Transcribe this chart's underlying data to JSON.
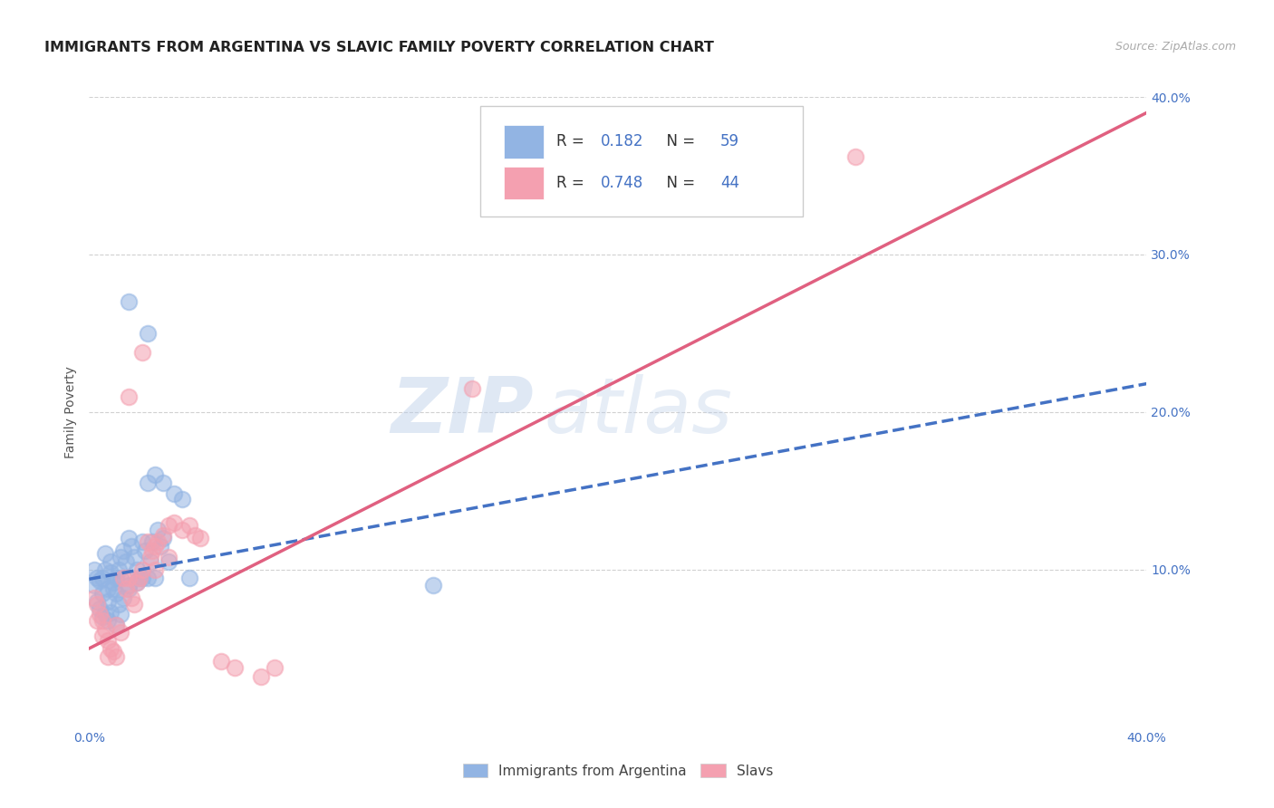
{
  "title": "IMMIGRANTS FROM ARGENTINA VS SLAVIC FAMILY POVERTY CORRELATION CHART",
  "source": "Source: ZipAtlas.com",
  "ylabel": "Family Poverty",
  "xlim": [
    0.0,
    0.4
  ],
  "ylim": [
    0.0,
    0.4
  ],
  "xtick_vals": [
    0.0,
    0.1,
    0.2,
    0.3,
    0.4
  ],
  "xtick_labels": [
    "0.0%",
    "",
    "",
    "",
    "40.0%"
  ],
  "ytick_vals_right": [
    0.1,
    0.2,
    0.3,
    0.4
  ],
  "ytick_labels_right": [
    "10.0%",
    "20.0%",
    "30.0%",
    "40.0%"
  ],
  "argentina_color": "#92b4e3",
  "slavic_color": "#f4a0b0",
  "argentina_R": "0.182",
  "argentina_N": "59",
  "slavic_R": "0.748",
  "slavic_N": "44",
  "legend_label_1": "Immigrants from Argentina",
  "legend_label_2": "Slavs",
  "watermark_zip": "ZIP",
  "watermark_atlas": "atlas",
  "argentina_line_x": [
    0.0,
    0.4
  ],
  "argentina_line_y": [
    0.094,
    0.218
  ],
  "slavic_line_x": [
    0.0,
    0.4
  ],
  "slavic_line_y": [
    0.05,
    0.39
  ],
  "bg_color": "#ffffff",
  "grid_color": "#cccccc",
  "title_fontsize": 11.5,
  "tick_label_color": "#4472c4",
  "R_N_color": "#4472c4",
  "argentina_scatter": [
    [
      0.003,
      0.095
    ],
    [
      0.004,
      0.093
    ],
    [
      0.005,
      0.095
    ],
    [
      0.005,
      0.085
    ],
    [
      0.006,
      0.1
    ],
    [
      0.006,
      0.11
    ],
    [
      0.007,
      0.088
    ],
    [
      0.007,
      0.08
    ],
    [
      0.008,
      0.105
    ],
    [
      0.008,
      0.098
    ],
    [
      0.009,
      0.092
    ],
    [
      0.009,
      0.088
    ],
    [
      0.01,
      0.085
    ],
    [
      0.01,
      0.095
    ],
    [
      0.011,
      0.1
    ],
    [
      0.011,
      0.078
    ],
    [
      0.012,
      0.108
    ],
    [
      0.012,
      0.095
    ],
    [
      0.013,
      0.112
    ],
    [
      0.013,
      0.082
    ],
    [
      0.014,
      0.105
    ],
    [
      0.015,
      0.12
    ],
    [
      0.015,
      0.09
    ],
    [
      0.016,
      0.115
    ],
    [
      0.017,
      0.108
    ],
    [
      0.018,
      0.1
    ],
    [
      0.019,
      0.095
    ],
    [
      0.02,
      0.118
    ],
    [
      0.02,
      0.095
    ],
    [
      0.021,
      0.112
    ],
    [
      0.022,
      0.095
    ],
    [
      0.023,
      0.105
    ],
    [
      0.024,
      0.118
    ],
    [
      0.025,
      0.095
    ],
    [
      0.026,
      0.125
    ],
    [
      0.027,
      0.115
    ],
    [
      0.028,
      0.12
    ],
    [
      0.03,
      0.105
    ],
    [
      0.002,
      0.1
    ],
    [
      0.002,
      0.09
    ],
    [
      0.003,
      0.08
    ],
    [
      0.004,
      0.075
    ],
    [
      0.005,
      0.07
    ],
    [
      0.006,
      0.072
    ],
    [
      0.007,
      0.068
    ],
    [
      0.008,
      0.073
    ],
    [
      0.01,
      0.065
    ],
    [
      0.012,
      0.072
    ],
    [
      0.015,
      0.088
    ],
    [
      0.018,
      0.092
    ],
    [
      0.022,
      0.155
    ],
    [
      0.025,
      0.16
    ],
    [
      0.028,
      0.155
    ],
    [
      0.032,
      0.148
    ],
    [
      0.035,
      0.145
    ],
    [
      0.015,
      0.27
    ],
    [
      0.022,
      0.25
    ],
    [
      0.038,
      0.095
    ],
    [
      0.13,
      0.09
    ]
  ],
  "slavic_scatter": [
    [
      0.002,
      0.082
    ],
    [
      0.003,
      0.078
    ],
    [
      0.003,
      0.068
    ],
    [
      0.004,
      0.072
    ],
    [
      0.005,
      0.068
    ],
    [
      0.005,
      0.058
    ],
    [
      0.006,
      0.062
    ],
    [
      0.007,
      0.055
    ],
    [
      0.007,
      0.045
    ],
    [
      0.008,
      0.05
    ],
    [
      0.009,
      0.048
    ],
    [
      0.01,
      0.045
    ],
    [
      0.01,
      0.065
    ],
    [
      0.012,
      0.06
    ],
    [
      0.013,
      0.095
    ],
    [
      0.014,
      0.088
    ],
    [
      0.015,
      0.095
    ],
    [
      0.015,
      0.21
    ],
    [
      0.016,
      0.082
    ],
    [
      0.017,
      0.078
    ],
    [
      0.018,
      0.092
    ],
    [
      0.019,
      0.095
    ],
    [
      0.02,
      0.1
    ],
    [
      0.02,
      0.238
    ],
    [
      0.022,
      0.118
    ],
    [
      0.023,
      0.108
    ],
    [
      0.024,
      0.112
    ],
    [
      0.025,
      0.115
    ],
    [
      0.025,
      0.1
    ],
    [
      0.026,
      0.118
    ],
    [
      0.028,
      0.122
    ],
    [
      0.03,
      0.128
    ],
    [
      0.03,
      0.108
    ],
    [
      0.032,
      0.13
    ],
    [
      0.035,
      0.125
    ],
    [
      0.038,
      0.128
    ],
    [
      0.04,
      0.122
    ],
    [
      0.042,
      0.12
    ],
    [
      0.05,
      0.042
    ],
    [
      0.055,
      0.038
    ],
    [
      0.065,
      0.032
    ],
    [
      0.07,
      0.038
    ],
    [
      0.29,
      0.362
    ],
    [
      0.145,
      0.215
    ]
  ]
}
